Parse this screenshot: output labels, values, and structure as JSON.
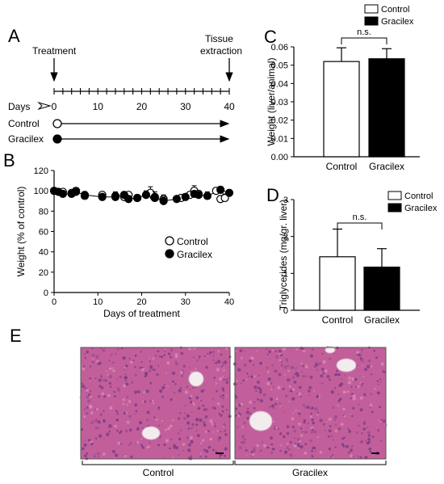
{
  "panels": {
    "a": "A",
    "b": "B",
    "c": "C",
    "d": "D",
    "e": "E"
  },
  "timeline": {
    "treatment_label": "Treatment",
    "tissue_label_line1": "Tissue",
    "tissue_label_line2": "extraction",
    "days_label": "Days",
    "ticks": [
      0,
      10,
      20,
      30,
      40
    ],
    "groups": [
      "Control",
      "Gracilex"
    ]
  },
  "histology": {
    "left_caption": "Control",
    "right_caption": "Gracilex",
    "tissue_color": "#c25f9a",
    "vessel_color": "#f3ecef"
  },
  "colors": {
    "control": "#ffffff",
    "gracilex": "#000000"
  },
  "chart_data": [
    {
      "id": "B",
      "type": "scatter",
      "xlabel": "Days of treatment",
      "ylabel": "Weight (% of control)",
      "xlim": [
        0,
        40
      ],
      "ylim": [
        0,
        120
      ],
      "xticks": [
        0,
        10,
        20,
        30,
        40
      ],
      "yticks": [
        0,
        20,
        40,
        60,
        80,
        100,
        120
      ],
      "legend_position": "bottom-right",
      "series": [
        {
          "name": "Control",
          "fill": "open",
          "x": [
            0,
            2,
            4,
            5,
            7,
            11,
            14,
            16,
            17,
            19,
            22,
            23,
            25,
            29,
            31,
            32,
            33,
            37,
            38,
            39
          ],
          "y": [
            100,
            99,
            98,
            100,
            95,
            96,
            95,
            94,
            96,
            93,
            98,
            94,
            92,
            93,
            96,
            100,
            97,
            100,
            92,
            93
          ],
          "err": [
            2,
            3,
            3,
            3,
            3,
            3,
            4,
            3,
            3,
            3,
            6,
            5,
            4,
            3,
            3,
            5,
            3,
            3,
            3,
            4
          ]
        },
        {
          "name": "Gracilex",
          "fill": "filled",
          "x": [
            0,
            1,
            2,
            4,
            5,
            7,
            11,
            14,
            16,
            17,
            19,
            21,
            23,
            25,
            28,
            30,
            32,
            33,
            35,
            38,
            40
          ],
          "y": [
            100,
            99,
            97,
            97,
            99,
            96,
            94,
            94,
            96,
            92,
            93,
            96,
            93,
            90,
            92,
            94,
            97,
            96,
            95,
            101,
            98
          ],
          "err": [
            2,
            2,
            3,
            3,
            3,
            3,
            3,
            4,
            3,
            3,
            3,
            4,
            4,
            4,
            3,
            3,
            3,
            3,
            4,
            3,
            3
          ]
        }
      ]
    },
    {
      "id": "C",
      "type": "bar",
      "categories": [
        "Control",
        "Gracilex"
      ],
      "values": [
        0.052,
        0.0535
      ],
      "errors": [
        0.0075,
        0.0055
      ],
      "ylabel": "Weight (liver/animal)",
      "ylim": [
        0,
        0.06
      ],
      "yticks": [
        "0.00",
        "0.01",
        "0.02",
        "0.03",
        "0.04",
        "0.05",
        "0.06"
      ],
      "significance": "n.s.",
      "legend": [
        "Control",
        "Gracilex"
      ],
      "legend_position": "top-right"
    },
    {
      "id": "D",
      "type": "bar",
      "categories": [
        "Control",
        "Gracilex"
      ],
      "values": [
        1.45,
        1.17
      ],
      "errors": [
        0.75,
        0.5
      ],
      "ylabel": "Triglycerides (mg/gr. liver)",
      "ylim": [
        0,
        3
      ],
      "yticks": [
        "0",
        "1",
        "2",
        "3"
      ],
      "significance": "n.s.",
      "legend": [
        "Control",
        "Gracilex"
      ],
      "legend_position": "top-right"
    }
  ]
}
